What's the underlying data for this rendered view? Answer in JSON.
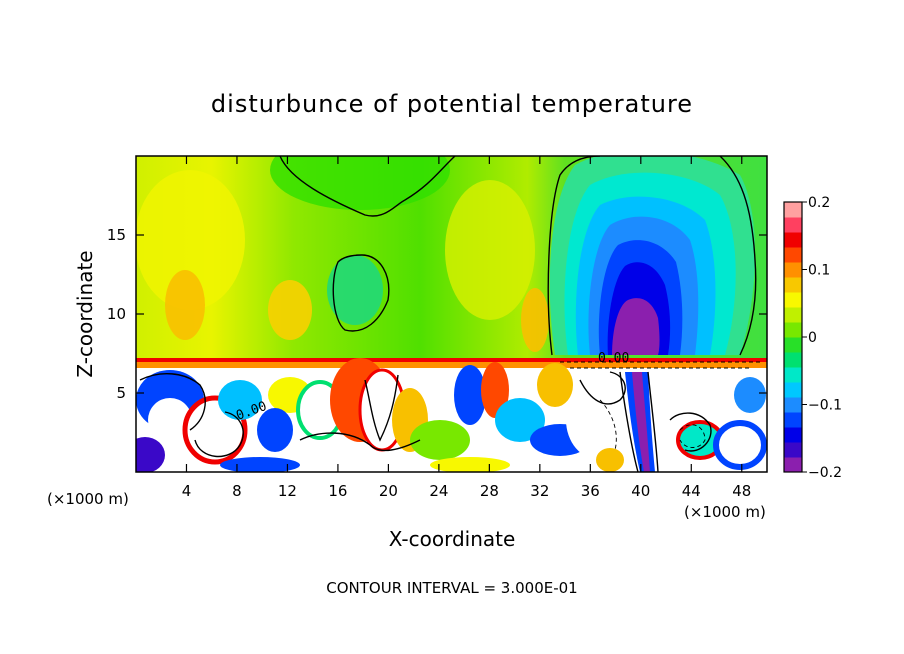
{
  "chart_data": {
    "type": "heatmap",
    "title": "disturbunce of potential temperature",
    "xlabel": "X-coordinate",
    "ylabel": "Z-coordinate",
    "x_unit": "(×1000 m)",
    "x_unit_right": "(×1000 m)",
    "xlim": [
      0,
      50
    ],
    "ylim": [
      0,
      20
    ],
    "x_ticks": [
      4,
      8,
      12,
      16,
      20,
      24,
      28,
      32,
      36,
      40,
      44,
      48
    ],
    "y_ticks": [
      5,
      10,
      15
    ],
    "footer": "CONTOUR INTERVAL = 3.000E-01",
    "contour_labels": [
      "0.00",
      "0.00"
    ],
    "colorbar": {
      "min": -0.2,
      "max": 0.2,
      "ticks": [
        {
          "value": 0.2,
          "label": "0.2"
        },
        {
          "value": 0.1,
          "label": "0.1"
        },
        {
          "value": 0,
          "label": "0"
        },
        {
          "value": -0.1,
          "label": "−0.1"
        },
        {
          "value": -0.2,
          "label": "−0.2"
        }
      ],
      "colors": [
        "#8b1fae",
        "#3a08c8",
        "#0000e8",
        "#0044ff",
        "#1c8cff",
        "#00c8ff",
        "#00e8c8",
        "#00e070",
        "#28e028",
        "#78e800",
        "#c0f000",
        "#f8f800",
        "#f8c800",
        "#ff9000",
        "#ff4800",
        "#f00000",
        "#ff4060",
        "#ffa0a0"
      ]
    }
  }
}
